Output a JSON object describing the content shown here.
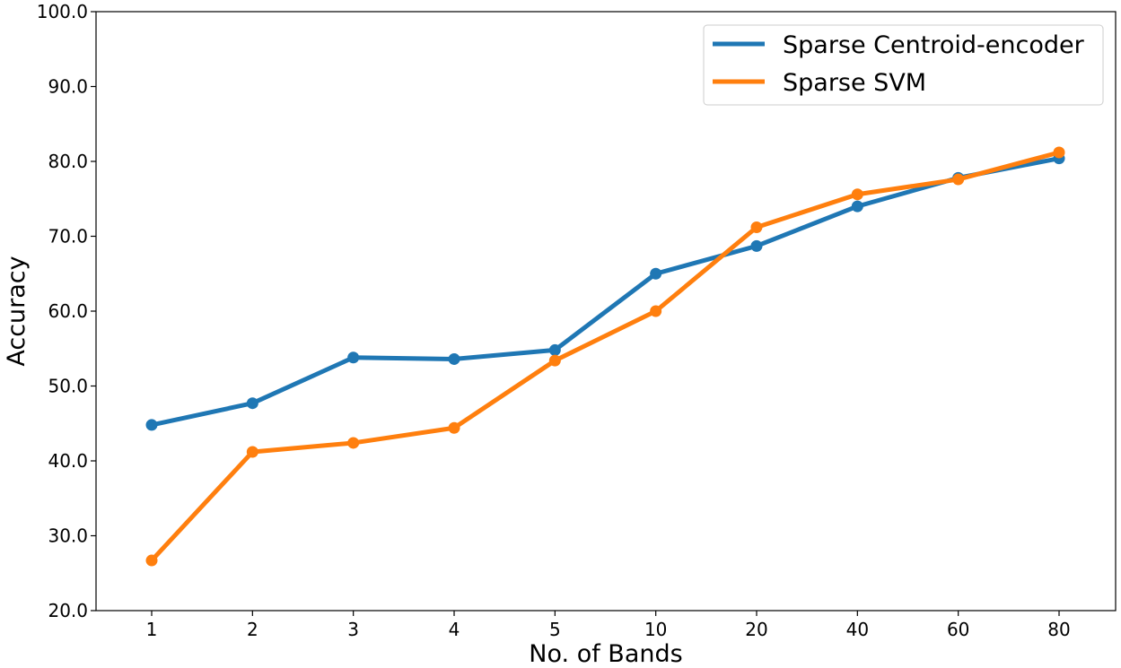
{
  "chart_data": {
    "type": "line",
    "title": "",
    "xlabel": "No. of Bands",
    "ylabel": "Accuracy",
    "categories": [
      "1",
      "2",
      "3",
      "4",
      "5",
      "10",
      "20",
      "40",
      "60",
      "80"
    ],
    "ylim": [
      20.0,
      100.0
    ],
    "yticks": [
      "20.0",
      "30.0",
      "40.0",
      "50.0",
      "60.0",
      "70.0",
      "80.0",
      "90.0",
      "100.0"
    ],
    "grid": false,
    "legend_position": "top-right",
    "series": [
      {
        "name": "Sparse Centroid-encoder",
        "color": "#1f77b4",
        "values": [
          44.8,
          47.7,
          53.8,
          53.6,
          54.8,
          65.0,
          68.7,
          74.0,
          77.8,
          80.4
        ]
      },
      {
        "name": "Sparse SVM",
        "color": "#ff7f0e",
        "values": [
          26.7,
          41.2,
          42.4,
          44.4,
          53.4,
          60.0,
          71.2,
          75.6,
          77.6,
          81.2
        ]
      }
    ]
  }
}
